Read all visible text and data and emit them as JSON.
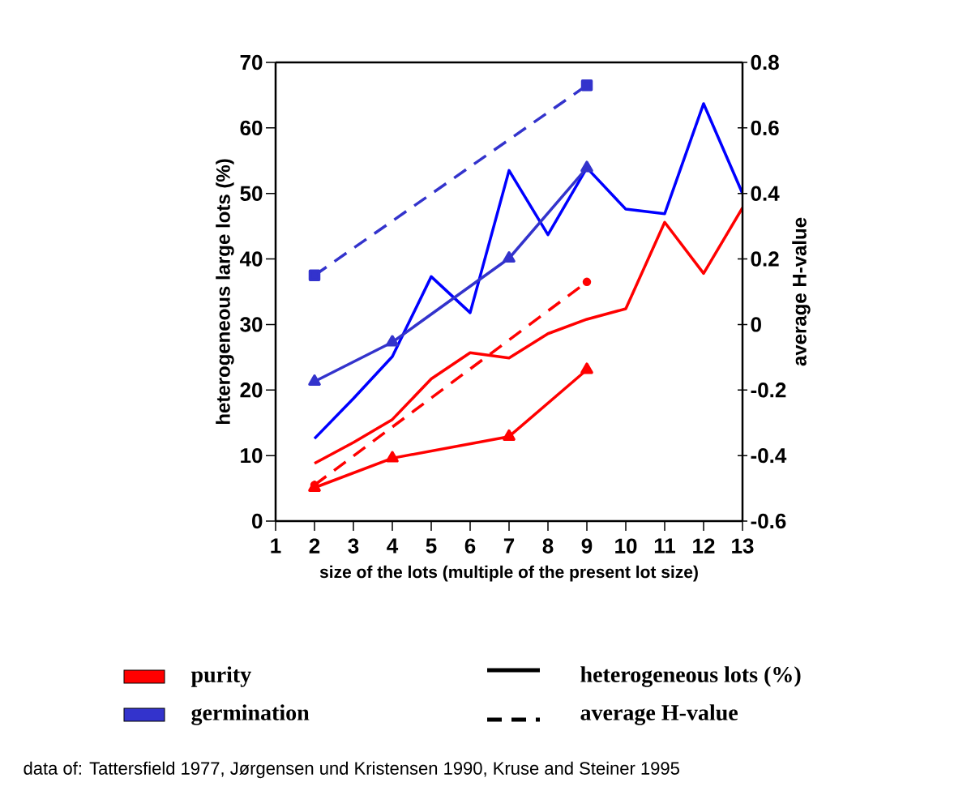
{
  "chart_data": {
    "type": "line",
    "xlabel": "size of the lots (multiple of the present lot size)",
    "ylabel": "heterogeneous large lots (%)",
    "y2label": "average H-value",
    "xlim": [
      1,
      13
    ],
    "xticks": [
      1,
      2,
      3,
      4,
      5,
      6,
      7,
      8,
      9,
      10,
      11,
      12,
      13
    ],
    "ylim": [
      0,
      70
    ],
    "yticks": [
      0,
      10,
      20,
      30,
      40,
      50,
      60,
      70
    ],
    "y2lim": [
      -0.6,
      0.8
    ],
    "y2ticks": [
      -0.6,
      -0.4,
      -0.2,
      0,
      0.2,
      0.4,
      0.6,
      0.8
    ],
    "legend": "bottom",
    "series": [
      {
        "color": "#ff0000",
        "x": [
          2,
          3,
          4,
          5,
          6,
          7,
          8,
          9,
          10,
          11,
          12,
          13
        ],
        "values": [
          8.8,
          12,
          15.5,
          21.7,
          25.7,
          24.9,
          28.6,
          30.8,
          32.4,
          45.6,
          37.8,
          47.8
        ],
        "marker": "none",
        "line_style": "solid"
      },
      {
        "color": "#0000ff",
        "x": [
          2,
          3,
          4,
          5,
          6,
          7,
          8,
          9,
          10,
          11,
          12,
          13
        ],
        "values": [
          12.6,
          18.7,
          25.1,
          37.3,
          31.8,
          53.5,
          43.7,
          53.9,
          47.6,
          46.9,
          63.7,
          50
        ],
        "marker": "none",
        "line_style": "solid"
      },
      {
        "name": "purity",
        "color": "#ff0000",
        "x": [
          2,
          4,
          7,
          9
        ],
        "values": [
          5.1,
          9.6,
          12.9,
          23.1
        ],
        "marker": "triangle",
        "line_style": "solid"
      },
      {
        "name": "germination",
        "color": "#3333cc",
        "x": [
          2,
          4,
          7,
          9
        ],
        "values": [
          21.3,
          27.3,
          40.1,
          53.9
        ],
        "marker": "triangle",
        "line_style": "solid"
      },
      {
        "color": "#ff0000",
        "x": [
          2,
          9
        ],
        "values": [
          -0.49,
          0.13
        ],
        "axis": "y2",
        "marker": "circle",
        "line_style": "dashed"
      },
      {
        "color": "#3333cc",
        "x": [
          2,
          9
        ],
        "values": [
          0.15,
          0.73
        ],
        "axis": "y2",
        "marker": "square",
        "line_style": "dashed"
      }
    ],
    "annotations": [
      "heterogeneous lots (%)",
      "average H-value",
      "data of: Tattersfield 1977, Jørgensen und Kristensen 1990, Kruse and Steiner 1995"
    ]
  }
}
